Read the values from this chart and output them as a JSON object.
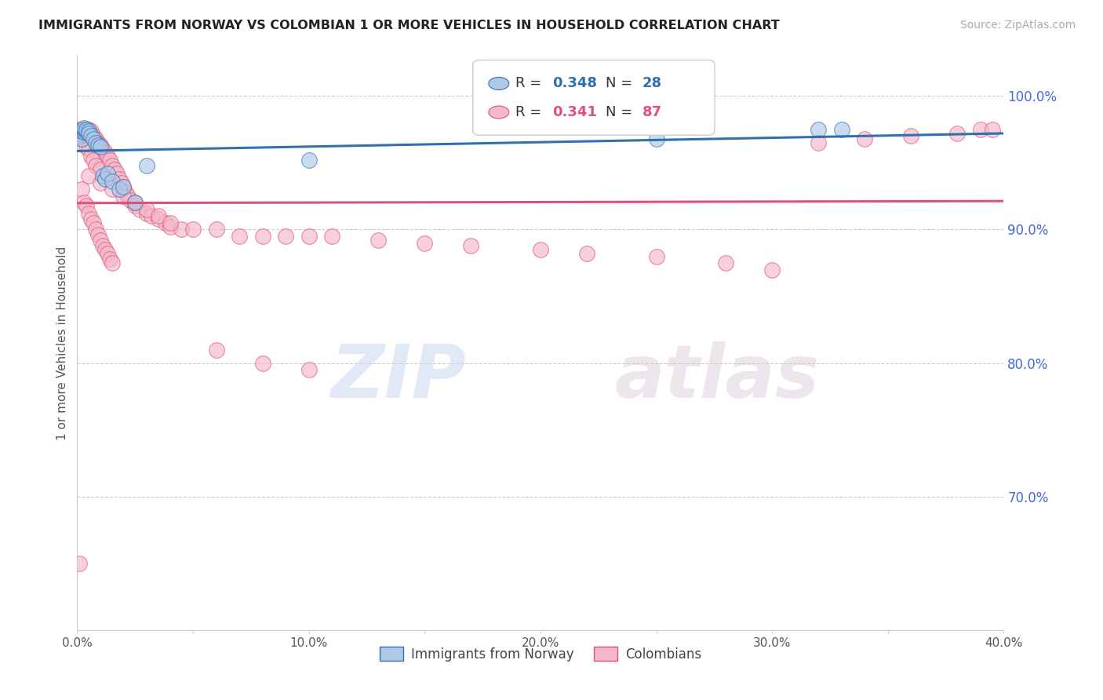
{
  "title": "IMMIGRANTS FROM NORWAY VS COLOMBIAN 1 OR MORE VEHICLES IN HOUSEHOLD CORRELATION CHART",
  "source": "Source: ZipAtlas.com",
  "ylabel": "1 or more Vehicles in Household",
  "xlim": [
    0.0,
    0.4
  ],
  "ylim": [
    0.6,
    1.03
  ],
  "xticks": [
    0.0,
    0.05,
    0.1,
    0.15,
    0.2,
    0.25,
    0.3,
    0.35,
    0.4
  ],
  "xticklabels": [
    "0.0%",
    "",
    "10.0%",
    "",
    "20.0%",
    "",
    "30.0%",
    "",
    "40.0%"
  ],
  "yticks_right": [
    0.7,
    0.8,
    0.9,
    1.0
  ],
  "ytick_labels_right": [
    "70.0%",
    "80.0%",
    "90.0%",
    "100.0%"
  ],
  "norway_R": 0.348,
  "norway_N": 28,
  "colombia_R": 0.341,
  "colombia_N": 87,
  "norway_color": "#aec8e8",
  "colombia_color": "#f4b8c8",
  "norway_line_color": "#3070b0",
  "colombia_line_color": "#e0507a",
  "watermark_zip": "ZIP",
  "watermark_atlas": "atlas",
  "norway_x": [
    0.001,
    0.001,
    0.002,
    0.002,
    0.003,
    0.003,
    0.003,
    0.004,
    0.004,
    0.005,
    0.005,
    0.006,
    0.007,
    0.008,
    0.009,
    0.01,
    0.011,
    0.012,
    0.013,
    0.015,
    0.018,
    0.02,
    0.025,
    0.03,
    0.1,
    0.25,
    0.32,
    0.33
  ],
  "norway_y": [
    0.97,
    0.972,
    0.968,
    0.974,
    0.973,
    0.975,
    0.976,
    0.974,
    0.975,
    0.974,
    0.972,
    0.97,
    0.968,
    0.965,
    0.963,
    0.962,
    0.94,
    0.938,
    0.942,
    0.936,
    0.93,
    0.932,
    0.92,
    0.948,
    0.952,
    0.968,
    0.975,
    0.975
  ],
  "colombia_x": [
    0.001,
    0.001,
    0.001,
    0.002,
    0.002,
    0.002,
    0.003,
    0.003,
    0.003,
    0.004,
    0.004,
    0.004,
    0.005,
    0.005,
    0.005,
    0.006,
    0.006,
    0.006,
    0.007,
    0.007,
    0.007,
    0.008,
    0.008,
    0.008,
    0.009,
    0.009,
    0.01,
    0.01,
    0.01,
    0.011,
    0.011,
    0.012,
    0.012,
    0.013,
    0.013,
    0.014,
    0.014,
    0.015,
    0.015,
    0.016,
    0.017,
    0.018,
    0.019,
    0.02,
    0.021,
    0.022,
    0.023,
    0.025,
    0.027,
    0.03,
    0.032,
    0.035,
    0.038,
    0.04,
    0.045,
    0.05,
    0.06,
    0.07,
    0.08,
    0.09,
    0.1,
    0.11,
    0.13,
    0.15,
    0.17,
    0.2,
    0.22,
    0.25,
    0.28,
    0.3,
    0.32,
    0.34,
    0.36,
    0.38,
    0.39,
    0.395,
    0.005,
    0.01,
    0.015,
    0.02,
    0.025,
    0.03,
    0.035,
    0.04,
    0.06,
    0.08,
    0.1
  ],
  "colombia_y": [
    0.972,
    0.975,
    0.65,
    0.974,
    0.975,
    0.93,
    0.975,
    0.968,
    0.92,
    0.975,
    0.962,
    0.918,
    0.975,
    0.96,
    0.912,
    0.974,
    0.955,
    0.908,
    0.97,
    0.952,
    0.905,
    0.968,
    0.948,
    0.9,
    0.965,
    0.896,
    0.963,
    0.945,
    0.892,
    0.96,
    0.888,
    0.958,
    0.885,
    0.955,
    0.882,
    0.952,
    0.878,
    0.948,
    0.875,
    0.945,
    0.942,
    0.938,
    0.935,
    0.932,
    0.928,
    0.925,
    0.922,
    0.918,
    0.915,
    0.912,
    0.91,
    0.908,
    0.905,
    0.902,
    0.9,
    0.9,
    0.9,
    0.895,
    0.895,
    0.895,
    0.895,
    0.895,
    0.892,
    0.89,
    0.888,
    0.885,
    0.882,
    0.88,
    0.875,
    0.87,
    0.965,
    0.968,
    0.97,
    0.972,
    0.975,
    0.975,
    0.94,
    0.935,
    0.93,
    0.925,
    0.92,
    0.915,
    0.91,
    0.905,
    0.81,
    0.8,
    0.795
  ]
}
